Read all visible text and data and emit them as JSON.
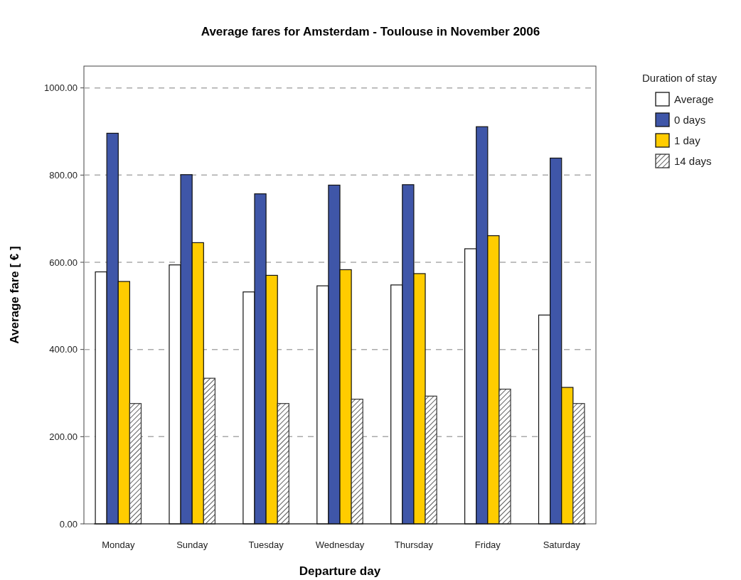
{
  "chart_data": {
    "type": "bar",
    "title": "Average fares for Amsterdam - Toulouse in November 2006",
    "xlabel": "Departure day",
    "ylabel": "Average fare [ € ]",
    "legend_title": "Duration of stay",
    "legend": "top right",
    "grid": "y",
    "categories": [
      "Monday",
      "Sunday",
      "Tuesday",
      "Wednesday",
      "Thursday",
      "Friday",
      "Saturday"
    ],
    "ylim": [
      0,
      1050
    ],
    "yticks": [
      {
        "value": 0,
        "label": "0.00"
      },
      {
        "value": 200,
        "label": "200.00"
      },
      {
        "value": 400,
        "label": "400.00"
      },
      {
        "value": 600,
        "label": "600.00"
      },
      {
        "value": 800,
        "label": "800.00"
      },
      {
        "value": 1000,
        "label": "1000.00"
      }
    ],
    "series": [
      {
        "name": "Average",
        "color": "#ffffff",
        "values": [
          578,
          594,
          532,
          546,
          548,
          631,
          479
        ]
      },
      {
        "name": "0 days",
        "color": "#3f56a8",
        "values": [
          896,
          801,
          757,
          777,
          778,
          911,
          839
        ]
      },
      {
        "name": "1 day",
        "color": "#ffcc00",
        "values": [
          556,
          645,
          570,
          583,
          574,
          661,
          313
        ]
      },
      {
        "name": "14 days",
        "color": "#333333",
        "values": [
          276,
          334,
          276,
          286,
          293,
          309,
          276
        ]
      }
    ]
  }
}
